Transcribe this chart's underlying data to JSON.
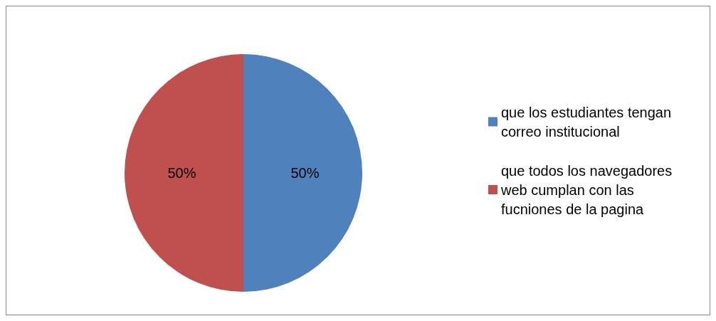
{
  "chart_data": {
    "type": "pie",
    "categories": [
      "que los estudiantes tengan correo institucional",
      "que todos los navegadores web cumplan con las fucniones de la pagina"
    ],
    "values": [
      50,
      50
    ],
    "colors": [
      "#4f81bd",
      "#c0504d"
    ],
    "value_labels": [
      "50%",
      "50%"
    ],
    "legend": "right"
  }
}
